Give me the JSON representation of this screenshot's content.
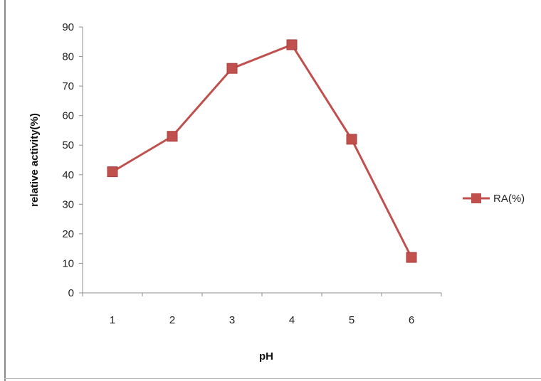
{
  "chart_data": {
    "type": "line",
    "title": "",
    "xlabel": "pH",
    "ylabel": "relative activity(%)",
    "x": [
      "1",
      "2",
      "3",
      "4",
      "5",
      "6"
    ],
    "ylim": [
      0,
      90
    ],
    "yticks": [
      "0",
      "10",
      "20",
      "30",
      "40",
      "50",
      "60",
      "70",
      "80",
      "90"
    ],
    "grid": false,
    "legend_position": "right",
    "series": [
      {
        "name": "RA(%)",
        "values": [
          41,
          53,
          76,
          84,
          52,
          12
        ],
        "color": "#c0504d",
        "marker": "square"
      }
    ]
  }
}
